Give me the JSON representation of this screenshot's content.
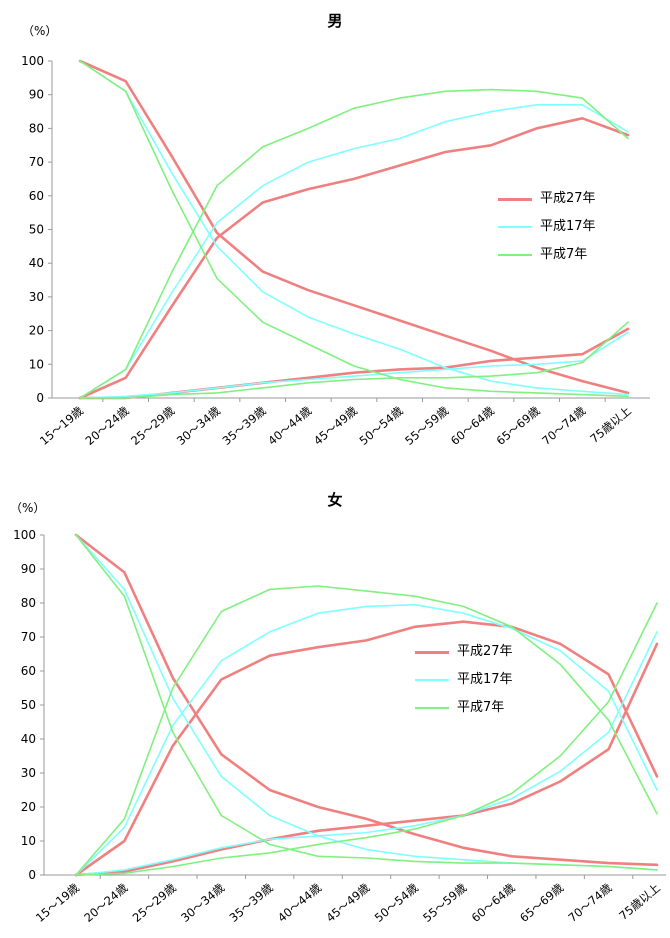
{
  "colors": {
    "s27": "#f08080",
    "s17": "#7fffff",
    "s7": "#80f080",
    "axis": "#9a9a9a"
  },
  "chart_data": [
    {
      "type": "line",
      "title": "男",
      "ylabel": "（%）",
      "ylim": [
        0,
        100
      ],
      "yticks": [
        "0",
        "10",
        "20",
        "30",
        "40",
        "50",
        "60",
        "70",
        "80",
        "90",
        "100"
      ],
      "categories": [
        "15～19歳",
        "20～24歳",
        "25～29歳",
        "30～34歳",
        "35～39歳",
        "40～44歳",
        "45～49歳",
        "50～54歳",
        "55～59歳",
        "60～64歳",
        "65～69歳",
        "70～74歳",
        "75歳以上"
      ],
      "legend": [
        "平成27年",
        "平成17年",
        "平成7年"
      ],
      "series": [
        {
          "name": "平成27年",
          "color_key": "s27",
          "values": [
            100,
            94,
            72,
            49,
            37.5,
            32,
            27.5,
            23,
            18.5,
            14,
            9,
            5,
            1.5
          ]
        },
        {
          "name": "平成27年",
          "color_key": "s27",
          "values": [
            0,
            6,
            27,
            47.5,
            58,
            62,
            65,
            69,
            73,
            75,
            80,
            83,
            78
          ]
        },
        {
          "name": "平成27年",
          "color_key": "s27",
          "values": [
            0,
            0,
            1.5,
            3,
            4.5,
            6,
            7.5,
            8.5,
            9,
            11,
            12,
            13,
            20.5
          ]
        },
        {
          "name": "平成17年",
          "color_key": "s17",
          "values": [
            100,
            91,
            67,
            45,
            31.5,
            24,
            19,
            14.5,
            9,
            5,
            3,
            2,
            1
          ]
        },
        {
          "name": "平成17年",
          "color_key": "s17",
          "values": [
            0,
            8.5,
            31,
            52,
            63,
            70,
            74,
            77,
            82,
            85,
            87,
            87,
            79
          ]
        },
        {
          "name": "平成17年",
          "color_key": "s17",
          "values": [
            0,
            0.5,
            1.5,
            3,
            4.5,
            5.5,
            6.5,
            7.5,
            8.5,
            9.5,
            10,
            11,
            19.5
          ]
        },
        {
          "name": "平成7年",
          "color_key": "s7",
          "values": [
            100,
            91,
            62,
            35.5,
            22.5,
            16,
            9.5,
            5.5,
            3,
            2,
            1.5,
            1,
            0.5
          ]
        },
        {
          "name": "平成7年",
          "color_key": "s7",
          "values": [
            0,
            8.5,
            37,
            63,
            74.5,
            80,
            86,
            89,
            91,
            91.5,
            91,
            89,
            77
          ]
        },
        {
          "name": "平成7年",
          "color_key": "s7",
          "values": [
            0,
            0,
            1,
            1.5,
            3,
            4.5,
            5.5,
            6,
            6,
            6.5,
            7.5,
            10.5,
            22.5
          ]
        }
      ]
    },
    {
      "type": "line",
      "title": "女",
      "ylabel": "（%）",
      "ylim": [
        0,
        100
      ],
      "yticks": [
        "0",
        "10",
        "20",
        "30",
        "40",
        "50",
        "60",
        "70",
        "80",
        "90",
        "100"
      ],
      "categories": [
        "15～19歳",
        "20～24歳",
        "25～29歳",
        "30～34歳",
        "35～39歳",
        "40～44歳",
        "45～49歳",
        "50～54歳",
        "55～59歳",
        "60～64歳",
        "65～69歳",
        "70～74歳",
        "75歳以上"
      ],
      "legend": [
        "平成27年",
        "平成17年",
        "平成7年"
      ],
      "series": [
        {
          "name": "平成27年",
          "color_key": "s27",
          "values": [
            100,
            89,
            58,
            35.5,
            25,
            20,
            16.5,
            12,
            8,
            5.5,
            4.5,
            3.5,
            3
          ]
        },
        {
          "name": "平成27年",
          "color_key": "s27",
          "values": [
            0,
            10,
            38,
            57.5,
            64.5,
            67,
            69,
            73,
            74.5,
            73,
            68,
            59,
            29
          ]
        },
        {
          "name": "平成27年",
          "color_key": "s27",
          "values": [
            0,
            1,
            4,
            7.5,
            10.5,
            13,
            14.5,
            16,
            17.5,
            21,
            27.5,
            37,
            68
          ]
        },
        {
          "name": "平成17年",
          "color_key": "s17",
          "values": [
            100,
            84,
            52,
            29,
            17.5,
            11.5,
            7.5,
            5.5,
            4.5,
            3.5,
            3,
            2.5,
            1.5
          ]
        },
        {
          "name": "平成17年",
          "color_key": "s17",
          "values": [
            0,
            14,
            44,
            63,
            71.5,
            77,
            79,
            79.5,
            77,
            72.5,
            66,
            54,
            25
          ]
        },
        {
          "name": "平成17年",
          "color_key": "s17",
          "values": [
            0,
            1.5,
            4.5,
            8,
            10.5,
            11.5,
            12.5,
            14.5,
            17.5,
            22.5,
            30.5,
            42,
            71.5
          ]
        },
        {
          "name": "平成7年",
          "color_key": "s7",
          "values": [
            100,
            82,
            42,
            17.5,
            9,
            5.5,
            5,
            4,
            3.5,
            3.5,
            3,
            2.5,
            1.5
          ]
        },
        {
          "name": "平成7年",
          "color_key": "s7",
          "values": [
            0,
            16.5,
            55,
            77.5,
            84,
            85,
            83.5,
            82,
            79,
            73,
            62,
            45.5,
            18
          ]
        },
        {
          "name": "平成7年",
          "color_key": "s7",
          "values": [
            0,
            0.5,
            2.5,
            5,
            6.5,
            9,
            11,
            13.5,
            17.5,
            24,
            35,
            51,
            80
          ]
        }
      ]
    }
  ]
}
